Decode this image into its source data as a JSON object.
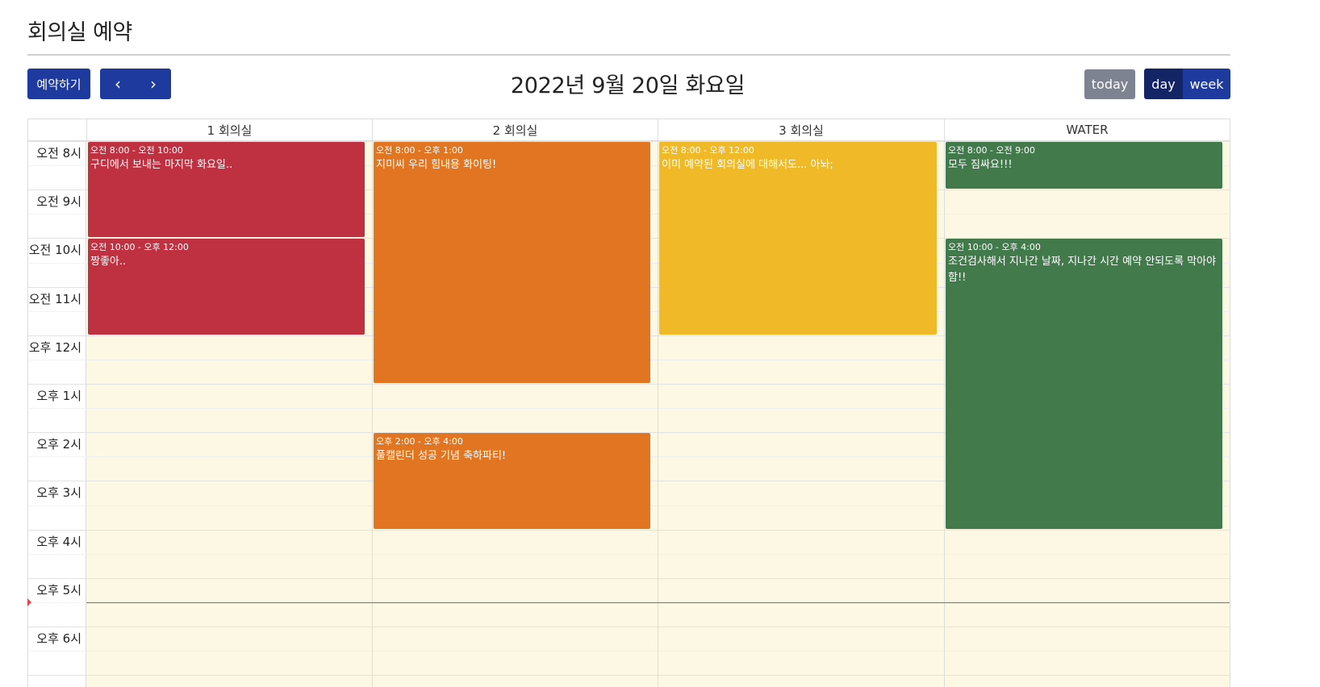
{
  "page": {
    "title": "회의실 예약"
  },
  "toolbar": {
    "reserve_label": "예약하기",
    "prev_icon": "chevron-left-icon",
    "next_icon": "chevron-right-icon",
    "prev_glyph": "‹",
    "next_glyph": "›",
    "date_title": "2022년 9월 20일 화요일",
    "today_label": "today",
    "day_label": "day",
    "week_label": "week",
    "colors": {
      "primary": "#1e3a9e",
      "active": "#142566",
      "today": "#7d8390"
    }
  },
  "calendar": {
    "resources": [
      "1 회의실",
      "2 회의실",
      "3 회의실",
      "WATER"
    ],
    "time_labels": [
      "오전 8시",
      "오전 9시",
      "오전 10시",
      "오전 11시",
      "오후 12시",
      "오후 1시",
      "오후 2시",
      "오후 3시",
      "오후 4시",
      "오후 5시",
      "오후 6시"
    ],
    "start_hour": 8,
    "now_hour": 17.5,
    "events": [
      {
        "resource": 0,
        "start": 8,
        "end": 10,
        "time": "오전 8:00 - 오전 10:00",
        "title": "구디에서 보내는 마지막 화요일..",
        "color": "#bf3040"
      },
      {
        "resource": 0,
        "start": 10,
        "end": 12,
        "time": "오전 10:00 - 오후 12:00",
        "title": "짱좋아..",
        "color": "#bf3040"
      },
      {
        "resource": 1,
        "start": 8,
        "end": 13,
        "time": "오전 8:00 - 오후 1:00",
        "title": "지미씨 우리 힘내용 화이팅!",
        "color": "#e27522"
      },
      {
        "resource": 1,
        "start": 14,
        "end": 16,
        "time": "오후 2:00 - 오후 4:00",
        "title": "풀캘린더 성공 기념 축하파티!",
        "color": "#e27522"
      },
      {
        "resource": 2,
        "start": 8,
        "end": 12,
        "time": "오전 8:00 - 오후 12:00",
        "title": "이미 예약된 회의실에 대해서도... 아놔;",
        "color": "#efb928"
      },
      {
        "resource": 3,
        "start": 8,
        "end": 9,
        "time": "오전 8:00 - 오전 9:00",
        "title": "모두 짐싸요!!!",
        "color": "#437a4c"
      },
      {
        "resource": 3,
        "start": 10,
        "end": 16,
        "time": "오전 10:00 - 오후 4:00",
        "title": "조건검사해서 지나간 날짜, 지나간 시간 예약 안되도록 막아야함!!",
        "color": "#437a4c"
      }
    ]
  }
}
